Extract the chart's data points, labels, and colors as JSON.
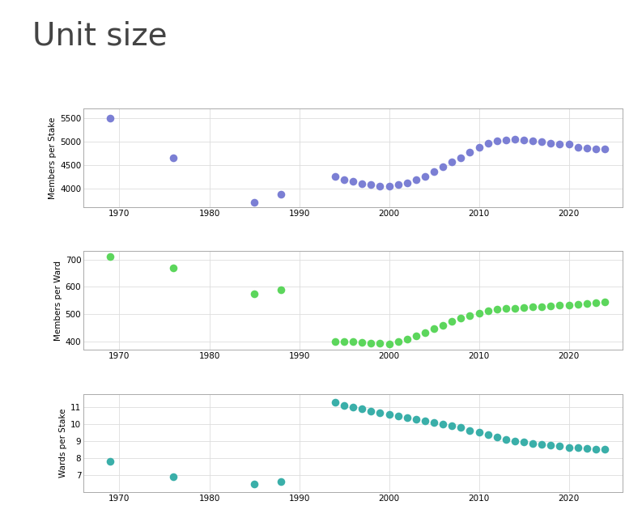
{
  "title": "Unit size",
  "title_fontsize": 28,
  "title_color": "#444444",
  "background_color": "#ffffff",
  "panel_bg": "#ffffff",
  "grid_color": "#dddddd",
  "plot1": {
    "ylabel": "Members per Stake",
    "color": "#7b7fd4",
    "sparse_years": [
      1969,
      1976,
      1985,
      1988
    ],
    "sparse_values": [
      5500,
      4650,
      3700,
      3870
    ],
    "dense_years": [
      1994,
      1995,
      1996,
      1997,
      1998,
      1999,
      2000,
      2001,
      2002,
      2003,
      2004,
      2005,
      2006,
      2007,
      2008,
      2009,
      2010,
      2011,
      2012,
      2013,
      2014,
      2015,
      2016,
      2017,
      2018,
      2019,
      2020,
      2021,
      2022,
      2023,
      2024
    ],
    "dense_values": [
      4250,
      4180,
      4150,
      4100,
      4080,
      4050,
      4050,
      4080,
      4120,
      4180,
      4260,
      4360,
      4460,
      4560,
      4660,
      4780,
      4880,
      4970,
      5020,
      5040,
      5050,
      5030,
      5010,
      4990,
      4970,
      4950,
      4940,
      4870,
      4860,
      4850,
      4840
    ],
    "ylim": [
      3600,
      5700
    ],
    "yticks": [
      4000,
      4500,
      5000,
      5500
    ]
  },
  "plot2": {
    "ylabel": "Members per Ward",
    "color": "#5cd65c",
    "sparse_years": [
      1969,
      1976,
      1985,
      1988
    ],
    "sparse_values": [
      710,
      668,
      575,
      590
    ],
    "dense_years": [
      1994,
      1995,
      1996,
      1997,
      1998,
      1999,
      2000,
      2001,
      2002,
      2003,
      2004,
      2005,
      2006,
      2007,
      2008,
      2009,
      2010,
      2011,
      2012,
      2013,
      2014,
      2015,
      2016,
      2017,
      2018,
      2019,
      2020,
      2021,
      2022,
      2023,
      2024
    ],
    "dense_values": [
      400,
      400,
      398,
      396,
      394,
      392,
      390,
      398,
      408,
      420,
      433,
      447,
      460,
      474,
      484,
      494,
      504,
      512,
      517,
      520,
      522,
      524,
      527,
      528,
      530,
      532,
      534,
      537,
      540,
      542,
      545
    ],
    "ylim": [
      370,
      730
    ],
    "yticks": [
      400,
      500,
      600,
      700
    ]
  },
  "plot3": {
    "ylabel": "Wards per Stake",
    "color": "#3aafa9",
    "sparse_years": [
      1969,
      1976,
      1985,
      1988
    ],
    "sparse_values": [
      7.8,
      6.9,
      6.5,
      6.6
    ],
    "dense_years": [
      1994,
      1995,
      1996,
      1997,
      1998,
      1999,
      2000,
      2001,
      2002,
      2003,
      2004,
      2005,
      2006,
      2007,
      2008,
      2009,
      2010,
      2011,
      2012,
      2013,
      2014,
      2015,
      2016,
      2017,
      2018,
      2019,
      2020,
      2021,
      2022,
      2023,
      2024
    ],
    "dense_values": [
      11.3,
      11.1,
      11.0,
      10.9,
      10.8,
      10.7,
      10.6,
      10.5,
      10.4,
      10.3,
      10.2,
      10.1,
      10.0,
      9.9,
      9.8,
      9.65,
      9.52,
      9.38,
      9.24,
      9.12,
      9.0,
      8.94,
      8.87,
      8.82,
      8.76,
      8.7,
      8.64,
      8.62,
      8.58,
      8.55,
      8.52
    ],
    "ylim": [
      6.0,
      11.8
    ],
    "yticks": [
      7,
      8,
      9,
      10,
      11
    ]
  },
  "xlim": [
    1966,
    2026
  ],
  "xticks": [
    1970,
    1980,
    1990,
    2000,
    2010,
    2020
  ]
}
